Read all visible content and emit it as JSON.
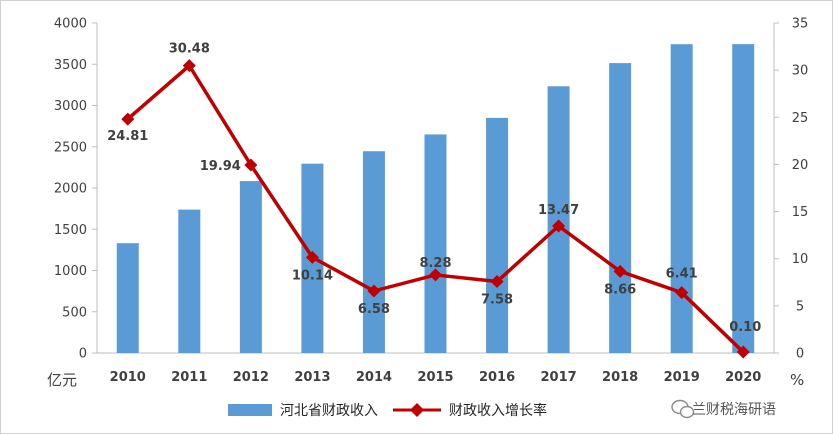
{
  "chart_data": {
    "type": "bar+line",
    "categories": [
      "2010",
      "2011",
      "2012",
      "2013",
      "2014",
      "2015",
      "2016",
      "2017",
      "2018",
      "2019",
      "2020"
    ],
    "series": [
      {
        "name": "河北省财政收入",
        "type": "bar",
        "axis": "left",
        "color": "#5B9BD5",
        "values": [
          1331,
          1738,
          2084,
          2295,
          2446,
          2649,
          2850,
          3233,
          3514,
          3743,
          3744
        ]
      },
      {
        "name": "财政收入增长率",
        "type": "line",
        "axis": "right",
        "color": "#C00000",
        "values": [
          24.81,
          30.48,
          19.94,
          10.14,
          6.58,
          8.28,
          7.58,
          13.47,
          8.66,
          6.41,
          0.1
        ],
        "labels": [
          "24.81",
          "30.48",
          "19.94",
          "10.14",
          "6.58",
          "8.28",
          "7.58",
          "13.47",
          "8.66",
          "6.41",
          "0.10"
        ]
      }
    ],
    "y_left": {
      "unit": "亿元",
      "min": 0,
      "max": 4000,
      "step": 500
    },
    "y_right": {
      "unit": "%",
      "min": 0,
      "max": 35,
      "step": 5
    },
    "legend_position": "bottom",
    "grid": false
  },
  "watermark": {
    "text": "兰财税海研语"
  }
}
